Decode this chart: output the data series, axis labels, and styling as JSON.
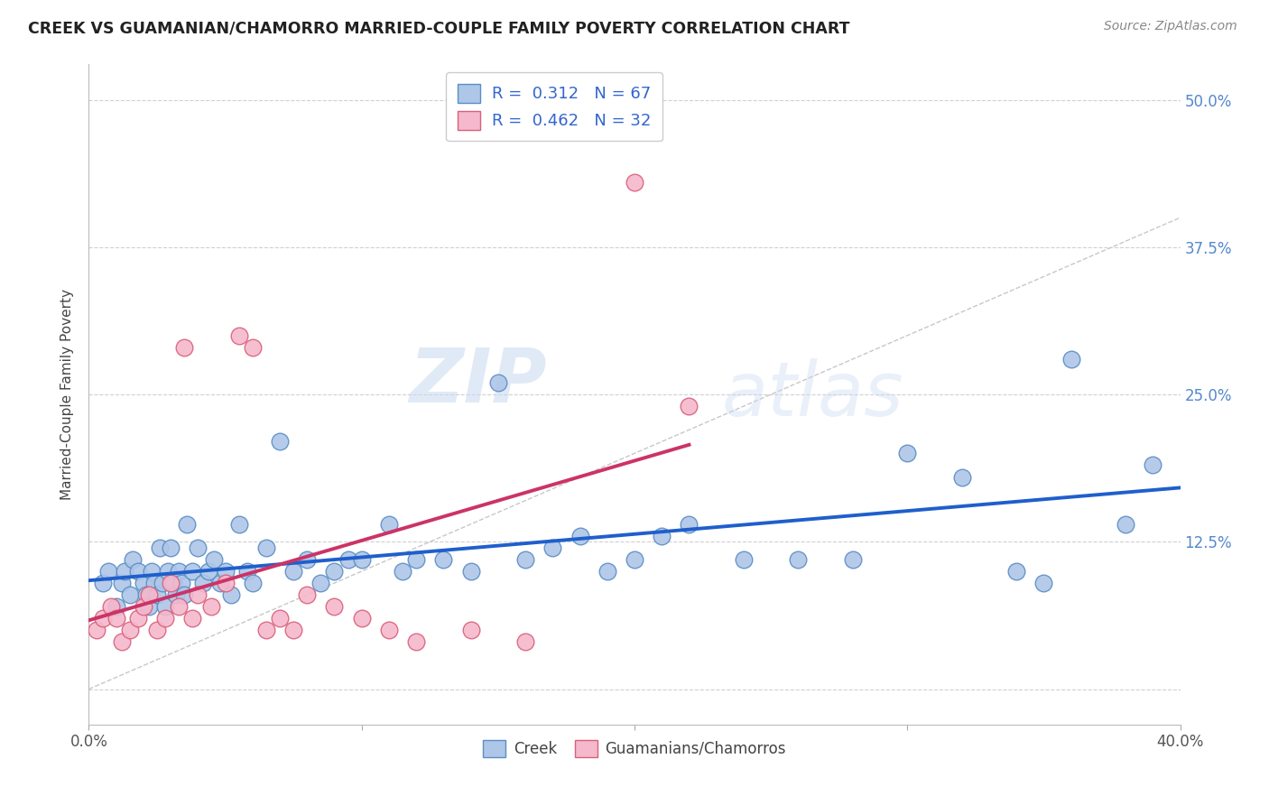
{
  "title": "CREEK VS GUAMANIAN/CHAMORRO MARRIED-COUPLE FAMILY POVERTY CORRELATION CHART",
  "source": "Source: ZipAtlas.com",
  "ylabel": "Married-Couple Family Poverty",
  "xlim": [
    0.0,
    0.4
  ],
  "ylim": [
    -0.03,
    0.53
  ],
  "xticks": [
    0.0,
    0.1,
    0.2,
    0.3,
    0.4
  ],
  "xticklabels": [
    "0.0%",
    "",
    "",
    "",
    "40.0%"
  ],
  "yticks": [
    0.0,
    0.125,
    0.25,
    0.375,
    0.5
  ],
  "yticklabels": [
    "",
    "12.5%",
    "25.0%",
    "37.5%",
    "50.0%"
  ],
  "background_color": "#ffffff",
  "grid_color": "#d0d0d0",
  "watermark": "ZIPatlas",
  "creek_color": "#aec6e8",
  "creek_edge_color": "#5b8ec4",
  "guam_color": "#f5b8cc",
  "guam_edge_color": "#d9607a",
  "creek_R": "0.312",
  "creek_N": "67",
  "guam_R": "0.462",
  "guam_N": "32",
  "blue_line_color": "#1f5fcc",
  "pink_line_color": "#cc3366",
  "diag_line_color": "#c8c8c8",
  "legend_label_creek": "Creek",
  "legend_label_guam": "Guamanians/Chamorros",
  "creek_x": [
    0.005,
    0.007,
    0.01,
    0.012,
    0.013,
    0.015,
    0.016,
    0.018,
    0.02,
    0.021,
    0.022,
    0.023,
    0.024,
    0.025,
    0.026,
    0.027,
    0.028,
    0.029,
    0.03,
    0.031,
    0.032,
    0.033,
    0.034,
    0.035,
    0.036,
    0.038,
    0.04,
    0.042,
    0.044,
    0.046,
    0.048,
    0.05,
    0.052,
    0.055,
    0.058,
    0.06,
    0.065,
    0.07,
    0.075,
    0.08,
    0.085,
    0.09,
    0.095,
    0.1,
    0.11,
    0.115,
    0.12,
    0.13,
    0.14,
    0.15,
    0.16,
    0.17,
    0.18,
    0.19,
    0.2,
    0.21,
    0.22,
    0.24,
    0.26,
    0.28,
    0.3,
    0.32,
    0.34,
    0.35,
    0.36,
    0.38,
    0.39
  ],
  "creek_y": [
    0.09,
    0.1,
    0.07,
    0.09,
    0.1,
    0.08,
    0.11,
    0.1,
    0.09,
    0.08,
    0.07,
    0.1,
    0.09,
    0.08,
    0.12,
    0.09,
    0.07,
    0.1,
    0.12,
    0.09,
    0.08,
    0.1,
    0.09,
    0.08,
    0.14,
    0.1,
    0.12,
    0.09,
    0.1,
    0.11,
    0.09,
    0.1,
    0.08,
    0.14,
    0.1,
    0.09,
    0.12,
    0.21,
    0.1,
    0.11,
    0.09,
    0.1,
    0.11,
    0.11,
    0.14,
    0.1,
    0.11,
    0.11,
    0.1,
    0.26,
    0.11,
    0.12,
    0.13,
    0.1,
    0.11,
    0.13,
    0.14,
    0.11,
    0.11,
    0.11,
    0.2,
    0.18,
    0.1,
    0.09,
    0.28,
    0.14,
    0.19
  ],
  "guam_x": [
    0.003,
    0.005,
    0.008,
    0.01,
    0.012,
    0.015,
    0.018,
    0.02,
    0.022,
    0.025,
    0.028,
    0.03,
    0.033,
    0.035,
    0.038,
    0.04,
    0.045,
    0.05,
    0.055,
    0.06,
    0.065,
    0.07,
    0.075,
    0.08,
    0.09,
    0.1,
    0.11,
    0.12,
    0.14,
    0.16,
    0.2,
    0.22
  ],
  "guam_y": [
    0.05,
    0.06,
    0.07,
    0.06,
    0.04,
    0.05,
    0.06,
    0.07,
    0.08,
    0.05,
    0.06,
    0.09,
    0.07,
    0.29,
    0.06,
    0.08,
    0.07,
    0.09,
    0.3,
    0.29,
    0.05,
    0.06,
    0.05,
    0.08,
    0.07,
    0.06,
    0.05,
    0.04,
    0.05,
    0.04,
    0.43,
    0.24
  ]
}
